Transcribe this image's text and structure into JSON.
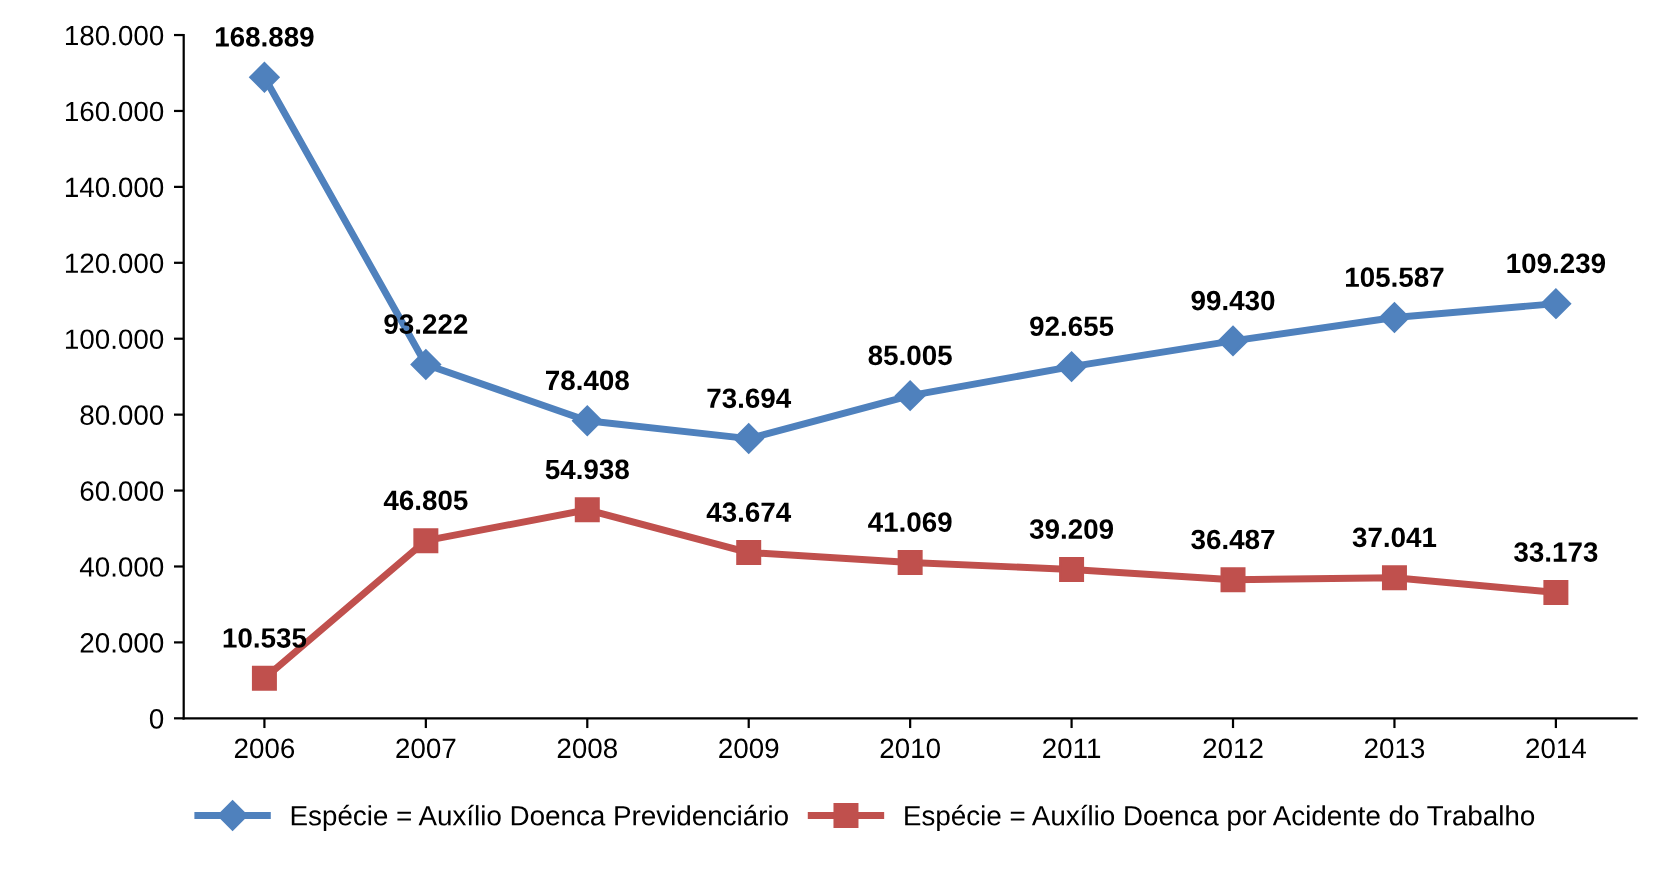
{
  "chart_data": {
    "type": "line",
    "categories": [
      "2006",
      "2007",
      "2008",
      "2009",
      "2010",
      "2011",
      "2012",
      "2013",
      "2014"
    ],
    "series": [
      {
        "name": "Espécie = Auxílio Doenca Previdenciário",
        "color": "#4f81bd",
        "marker": "diamond",
        "values": [
          168889,
          93222,
          78408,
          73694,
          85005,
          92655,
          99430,
          105587,
          109239
        ],
        "value_labels": [
          "168.889",
          "93.222",
          "78.408",
          "73.694",
          "85.005",
          "92.655",
          "99.430",
          "105.587",
          "109.239"
        ]
      },
      {
        "name": "Espécie = Auxílio Doenca por Acidente do Trabalho",
        "color": "#c0504d",
        "marker": "square",
        "values": [
          10535,
          46805,
          54938,
          43674,
          41069,
          39209,
          36487,
          37041,
          33173
        ],
        "value_labels": [
          "10.535",
          "46.805",
          "54.938",
          "43.674",
          "41.069",
          "39.209",
          "36.487",
          "37.041",
          "33.173"
        ]
      }
    ],
    "ylim": [
      0,
      180000
    ],
    "yticks": [
      0,
      {
        "value": 20000,
        "label": "20.000"
      },
      {
        "value": 40000,
        "label": "40.000"
      },
      {
        "value": 60000,
        "label": "60.000"
      },
      {
        "value": 80000,
        "label": "80.000"
      },
      {
        "value": 100000,
        "label": "100.000"
      },
      {
        "value": 120000,
        "label": "120.000"
      },
      {
        "value": 140000,
        "label": "140.000"
      },
      {
        "value": 160000,
        "label": "160.000"
      },
      {
        "value": 180000,
        "label": "180.000"
      }
    ],
    "grid": false,
    "legend": "bottom",
    "line_style": "solid"
  }
}
